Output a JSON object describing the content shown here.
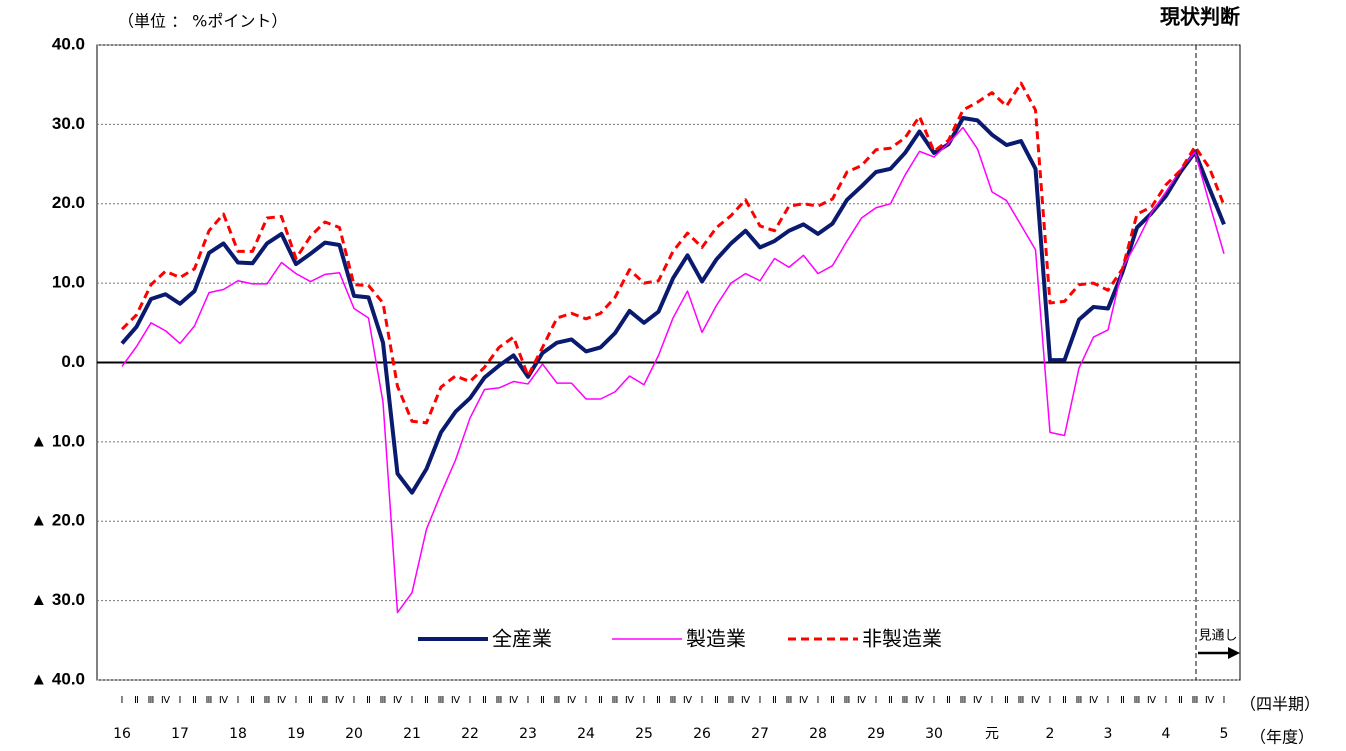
{
  "chart_data": {
    "type": "line",
    "title": "現状判断",
    "unit_label": "（単位 ： %ポイント）",
    "x_label": "（四半期）",
    "year_label": "（年度）",
    "forecast_label": "見通し",
    "categories": [
      "Ⅰ",
      "Ⅱ",
      "Ⅲ",
      "Ⅳ",
      "Ⅰ",
      "Ⅱ",
      "Ⅲ",
      "Ⅳ",
      "Ⅰ",
      "Ⅱ",
      "Ⅲ",
      "Ⅳ",
      "Ⅰ",
      "Ⅱ",
      "Ⅲ",
      "Ⅳ",
      "Ⅰ",
      "Ⅱ",
      "Ⅲ",
      "Ⅳ",
      "Ⅰ",
      "Ⅱ",
      "Ⅲ",
      "Ⅳ",
      "Ⅰ",
      "Ⅱ",
      "Ⅲ",
      "Ⅳ",
      "Ⅰ",
      "Ⅱ",
      "Ⅲ",
      "Ⅳ",
      "Ⅰ",
      "Ⅱ",
      "Ⅲ",
      "Ⅳ",
      "Ⅰ",
      "Ⅱ",
      "Ⅲ",
      "Ⅳ",
      "Ⅰ",
      "Ⅱ",
      "Ⅲ",
      "Ⅳ",
      "Ⅰ",
      "Ⅱ",
      "Ⅲ",
      "Ⅳ",
      "Ⅰ",
      "Ⅱ",
      "Ⅲ",
      "Ⅳ",
      "Ⅰ",
      "Ⅱ",
      "Ⅲ",
      "Ⅳ",
      "Ⅰ",
      "Ⅱ",
      "Ⅲ",
      "Ⅳ",
      "Ⅰ",
      "Ⅱ",
      "Ⅲ",
      "Ⅳ",
      "Ⅰ",
      "Ⅱ",
      "Ⅲ",
      "Ⅳ",
      "Ⅰ",
      "Ⅱ",
      "Ⅲ",
      "Ⅳ",
      "Ⅰ",
      "Ⅱ",
      "Ⅲ",
      "Ⅳ",
      "Ⅰ"
    ],
    "year_labels": [
      "16",
      "17",
      "18",
      "19",
      "20",
      "21",
      "22",
      "23",
      "24",
      "25",
      "26",
      "27",
      "28",
      "29",
      "30",
      "元",
      "2",
      "3",
      "4",
      "5"
    ],
    "ylim": [
      -40,
      40
    ],
    "yticks": [
      {
        "value": 40,
        "label": "40.0"
      },
      {
        "value": 30,
        "label": "30.0"
      },
      {
        "value": 20,
        "label": "20.0"
      },
      {
        "value": 10,
        "label": "10.0"
      },
      {
        "value": 0,
        "label": "0.0"
      },
      {
        "value": -10,
        "label": "▲ 10.0"
      },
      {
        "value": -20,
        "label": "▲ 20.0"
      },
      {
        "value": -30,
        "label": "▲ 30.0"
      },
      {
        "value": -40,
        "label": "▲ 40.0"
      }
    ],
    "grid": true,
    "series": [
      {
        "name": "全産業",
        "color": "#0a1a6e",
        "width": 4,
        "dash": false,
        "values": [
          2.4,
          4.5,
          8.0,
          8.6,
          7.4,
          9.0,
          13.8,
          15.0,
          12.6,
          12.5,
          15.0,
          16.2,
          12.4,
          13.7,
          15.1,
          14.8,
          8.4,
          8.2,
          2.5,
          -14.0,
          -16.4,
          -13.4,
          -8.8,
          -6.2,
          -4.5,
          -1.9,
          -0.4,
          0.9,
          -1.8,
          1.2,
          2.5,
          2.9,
          1.4,
          1.9,
          3.7,
          6.5,
          5.0,
          6.4,
          10.6,
          13.5,
          10.2,
          13.0,
          15.0,
          16.6,
          14.5,
          15.3,
          16.6,
          17.4,
          16.2,
          17.5,
          20.5,
          22.2,
          24.0,
          24.4,
          26.4,
          29.1,
          26.4,
          27.5,
          30.8,
          30.5,
          28.7,
          27.4,
          27.9,
          24.4,
          0.3,
          0.3,
          5.4,
          7.0,
          6.8,
          11.4,
          17.0,
          18.8,
          21.0,
          24.0,
          26.5,
          21.9,
          17.4
        ]
      },
      {
        "name": "製造業",
        "color": "#ff00ff",
        "width": 1.5,
        "dash": false,
        "values": [
          -0.5,
          2.0,
          5.0,
          4.0,
          2.4,
          4.6,
          8.8,
          9.2,
          10.3,
          9.9,
          9.9,
          12.6,
          11.2,
          10.2,
          11.1,
          11.3,
          6.8,
          5.6,
          -5.0,
          -31.5,
          -29.0,
          -21.0,
          -16.5,
          -12.3,
          -7.0,
          -3.4,
          -3.2,
          -2.4,
          -2.7,
          -0.2,
          -2.6,
          -2.6,
          -4.6,
          -4.6,
          -3.7,
          -1.7,
          -2.8,
          0.9,
          5.6,
          9.0,
          3.8,
          7.2,
          10.0,
          11.2,
          10.3,
          13.1,
          12.0,
          13.5,
          11.2,
          12.2,
          15.3,
          18.2,
          19.5,
          20.0,
          23.6,
          26.6,
          25.9,
          27.6,
          29.6,
          26.9,
          21.5,
          20.4,
          17.3,
          14.2,
          -8.8,
          -9.2,
          -0.7,
          3.2,
          4.1,
          11.9,
          15.2,
          18.9,
          21.5,
          24.3,
          26.5,
          20.0,
          13.7
        ]
      },
      {
        "name": "非製造業",
        "color": "#ff0000",
        "width": 3,
        "dash": true,
        "values": [
          4.2,
          6.0,
          9.8,
          11.5,
          10.7,
          11.8,
          16.6,
          18.7,
          14.0,
          14.0,
          18.2,
          18.4,
          13.1,
          15.9,
          17.7,
          17.0,
          9.8,
          9.7,
          7.5,
          -3.0,
          -7.4,
          -7.6,
          -3.1,
          -1.7,
          -2.4,
          -0.6,
          1.9,
          3.2,
          -1.7,
          1.9,
          5.6,
          6.2,
          5.5,
          6.2,
          8.2,
          11.7,
          10.0,
          10.3,
          14.0,
          16.3,
          14.5,
          17.0,
          18.5,
          20.5,
          17.2,
          16.6,
          19.7,
          20.0,
          19.7,
          20.6,
          24.0,
          24.8,
          26.8,
          27.0,
          28.3,
          31.0,
          26.6,
          28.0,
          31.8,
          32.8,
          34.0,
          32.3,
          35.2,
          31.8,
          7.5,
          7.7,
          9.8,
          10.0,
          9.1,
          11.8,
          18.7,
          19.6,
          22.4,
          24.2,
          27.2,
          24.5,
          19.8
        ]
      }
    ]
  }
}
